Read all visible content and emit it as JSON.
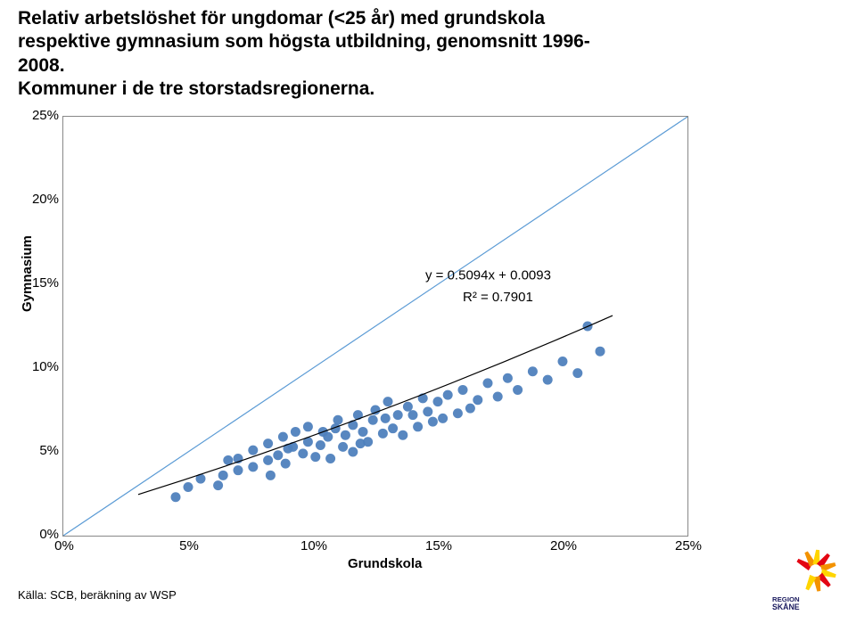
{
  "title_lines": [
    "Relativ arbetslöshet för ungdomar (<25 år) med grundskola",
    "respektive gymnasium som högsta utbildning, genomsnitt 1996-2008.",
    "Kommuner i de tre storstadsregionerna."
  ],
  "chart": {
    "type": "scatter",
    "xlabel": "Grundskola",
    "ylabel": "Gymnasium",
    "x_ticks": [
      "0%",
      "5%",
      "10%",
      "15%",
      "20%",
      "25%"
    ],
    "y_ticks": [
      "0%",
      "5%",
      "10%",
      "15%",
      "20%",
      "25%"
    ],
    "xlim": [
      0,
      25
    ],
    "ylim": [
      0,
      25
    ],
    "background_color": "#ffffff",
    "border_color": "#888888",
    "identity_line": {
      "color": "#5b9bd5",
      "width": 1.2
    },
    "regression": {
      "slope": 0.5094,
      "intercept": 0.0093,
      "r2": 0.7901,
      "text1": "y = 0.5094x + 0.0093",
      "text2": "R² = 0.7901",
      "color": "#000000",
      "width": 1.2,
      "x_start": 3,
      "x_end": 22
    },
    "marker": {
      "color": "#4f81bd",
      "radius": 5.5,
      "opacity": 0.95
    },
    "data": [
      [
        4.5,
        2.3
      ],
      [
        5.0,
        2.9
      ],
      [
        5.5,
        3.4
      ],
      [
        6.2,
        3.0
      ],
      [
        6.4,
        3.6
      ],
      [
        6.6,
        4.5
      ],
      [
        7.0,
        3.9
      ],
      [
        7.0,
        4.6
      ],
      [
        7.6,
        5.1
      ],
      [
        7.6,
        4.1
      ],
      [
        8.2,
        4.5
      ],
      [
        8.2,
        5.5
      ],
      [
        8.3,
        3.6
      ],
      [
        8.6,
        4.8
      ],
      [
        8.8,
        5.9
      ],
      [
        8.9,
        4.3
      ],
      [
        9.0,
        5.2
      ],
      [
        9.2,
        5.3
      ],
      [
        9.3,
        6.2
      ],
      [
        9.6,
        4.9
      ],
      [
        9.8,
        5.6
      ],
      [
        9.8,
        6.5
      ],
      [
        10.1,
        4.7
      ],
      [
        10.3,
        5.4
      ],
      [
        10.4,
        6.2
      ],
      [
        10.6,
        5.9
      ],
      [
        10.7,
        4.6
      ],
      [
        10.9,
        6.4
      ],
      [
        11.0,
        6.9
      ],
      [
        11.2,
        5.3
      ],
      [
        11.3,
        6.0
      ],
      [
        11.6,
        6.6
      ],
      [
        11.6,
        5.0
      ],
      [
        11.8,
        7.2
      ],
      [
        11.9,
        5.5
      ],
      [
        12.0,
        6.2
      ],
      [
        12.2,
        5.6
      ],
      [
        12.4,
        6.9
      ],
      [
        12.5,
        7.5
      ],
      [
        12.8,
        6.1
      ],
      [
        12.9,
        7.0
      ],
      [
        13.0,
        8.0
      ],
      [
        13.2,
        6.4
      ],
      [
        13.4,
        7.2
      ],
      [
        13.6,
        6.0
      ],
      [
        13.8,
        7.7
      ],
      [
        14.0,
        7.2
      ],
      [
        14.2,
        6.5
      ],
      [
        14.4,
        8.2
      ],
      [
        14.6,
        7.4
      ],
      [
        14.8,
        6.8
      ],
      [
        15.0,
        8.0
      ],
      [
        15.2,
        7.0
      ],
      [
        15.4,
        8.4
      ],
      [
        15.8,
        7.3
      ],
      [
        16.0,
        8.7
      ],
      [
        16.3,
        7.6
      ],
      [
        16.6,
        8.1
      ],
      [
        17.0,
        9.1
      ],
      [
        17.4,
        8.3
      ],
      [
        17.8,
        9.4
      ],
      [
        18.2,
        8.7
      ],
      [
        18.8,
        9.8
      ],
      [
        19.4,
        9.3
      ],
      [
        20.0,
        10.4
      ],
      [
        20.6,
        9.7
      ],
      [
        21.0,
        12.5
      ],
      [
        21.5,
        11.0
      ]
    ]
  },
  "source": "Källa: SCB, beräkning av WSP",
  "logo": {
    "text_line1": "REGION",
    "text_line2": "SKÅNE",
    "accent_colors": [
      "#e30613",
      "#f39200",
      "#ffd500"
    ]
  }
}
